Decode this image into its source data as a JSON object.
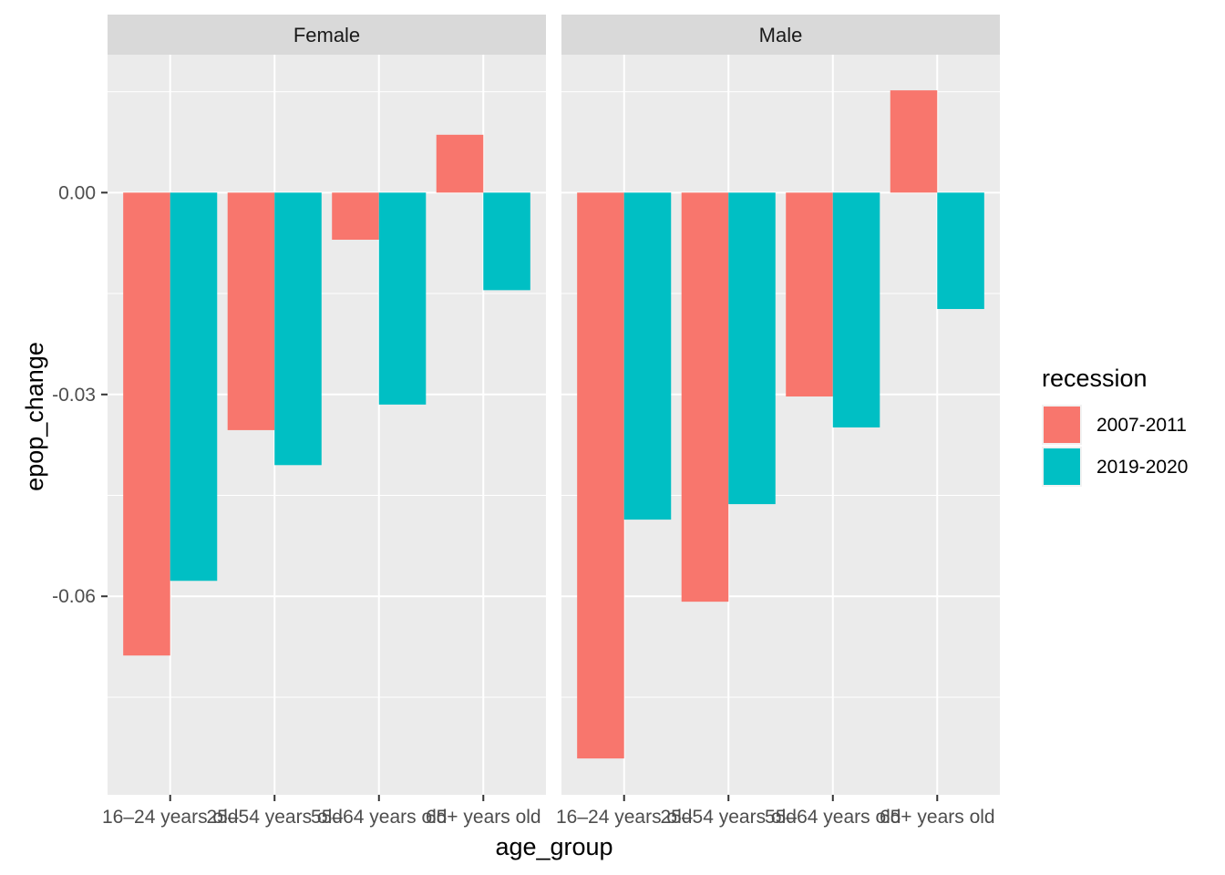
{
  "chart_data": {
    "type": "bar",
    "facet_by": [
      "Female",
      "Male"
    ],
    "categories": [
      "16–24 years old",
      "25–54 years old",
      "55–64 years old",
      "65+ years old"
    ],
    "xlabel": "age_group",
    "ylabel": "epop_change",
    "ylim": [
      -0.0895,
      0.0205
    ],
    "yticks": [
      0.0,
      -0.03,
      -0.06
    ],
    "ytick_labels": [
      "0.00",
      "-0.03",
      "-0.06"
    ],
    "legend": {
      "title": "recession",
      "placement": "right",
      "entries": [
        "2007-2011",
        "2019-2020"
      ]
    },
    "colors": {
      "2007-2011": "#F8766D",
      "2019-2020": "#00BFC4",
      "panel": "#EBEBEB",
      "strip": "#D9D9D9",
      "grid": "#FFFFFF"
    },
    "grid": true,
    "panels": [
      {
        "name": "Female",
        "series": [
          {
            "name": "2007-2011",
            "values": [
              -0.0688,
              -0.0353,
              -0.007,
              0.0086
            ]
          },
          {
            "name": "2019-2020",
            "values": [
              -0.0577,
              -0.0405,
              -0.0315,
              -0.0145
            ]
          }
        ]
      },
      {
        "name": "Male",
        "series": [
          {
            "name": "2007-2011",
            "values": [
              -0.0841,
              -0.0608,
              -0.0303,
              0.0152
            ]
          },
          {
            "name": "2019-2020",
            "values": [
              -0.0486,
              -0.0463,
              -0.0349,
              -0.0173
            ]
          }
        ]
      }
    ]
  }
}
